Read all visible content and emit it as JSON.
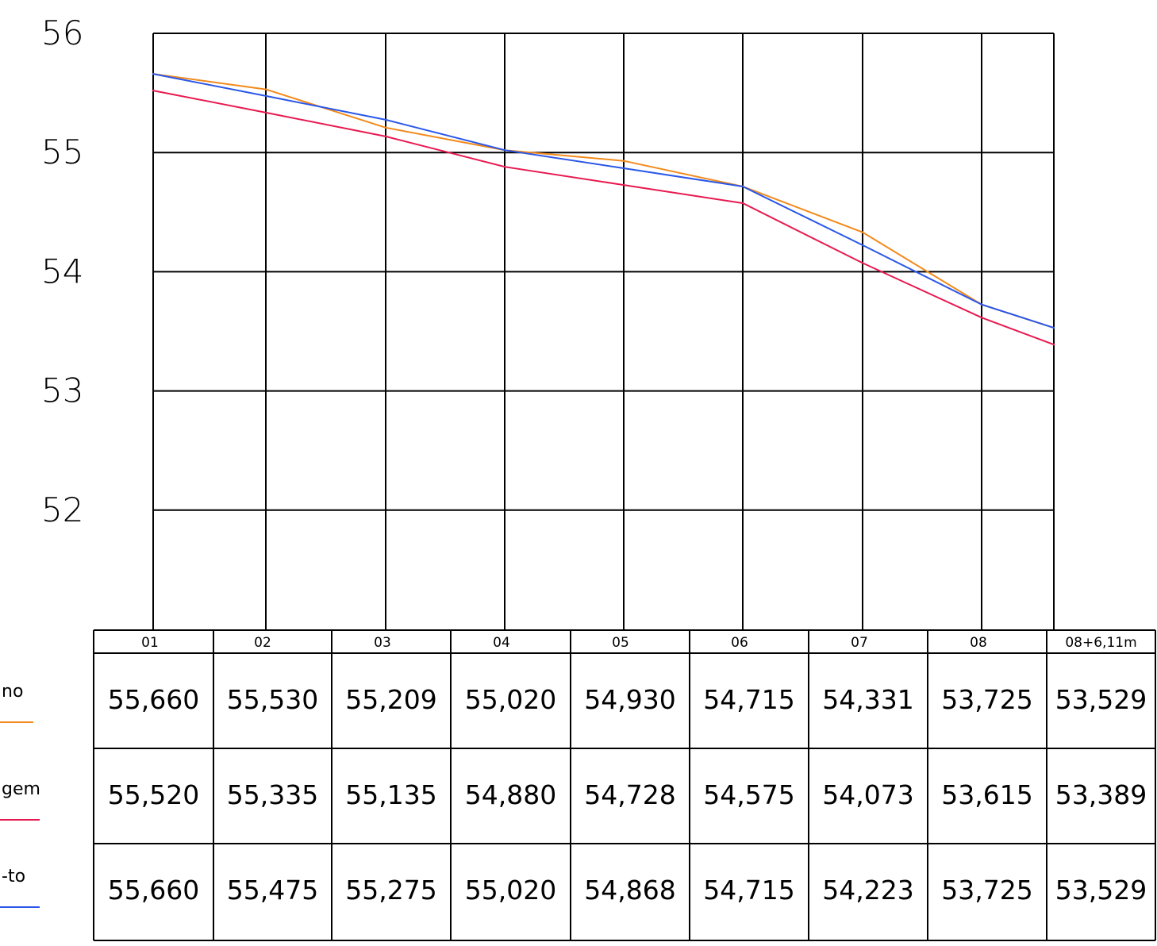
{
  "chart_data": {
    "type": "line",
    "x_categories": [
      "01",
      "02",
      "03",
      "04",
      "05",
      "06",
      "07",
      "08",
      "08+6,11m"
    ],
    "y_ticks": [
      "56",
      "55",
      "54",
      "53",
      "52"
    ],
    "ylim": [
      51,
      56
    ],
    "grid": true,
    "series": [
      {
        "legend_label": "no",
        "color": "#f28a1c",
        "values": [
          55.66,
          55.53,
          55.209,
          55.02,
          54.93,
          54.715,
          54.331,
          53.725,
          53.529
        ],
        "labels": [
          "55,660",
          "55,530",
          "55,209",
          "55,020",
          "54,930",
          "54,715",
          "54,331",
          "53,725",
          "53,529"
        ]
      },
      {
        "legend_label": "gem",
        "color": "#e8194f",
        "values": [
          55.52,
          55.335,
          55.135,
          54.88,
          54.728,
          54.575,
          54.073,
          53.615,
          53.389
        ],
        "labels": [
          "55,520",
          "55,335",
          "55,135",
          "54,880",
          "54,728",
          "54,575",
          "54,073",
          "53,615",
          "53,389"
        ]
      },
      {
        "legend_label": "-to",
        "color": "#2a57e8",
        "values": [
          55.66,
          55.475,
          55.275,
          55.02,
          54.868,
          54.715,
          54.223,
          53.725,
          53.529
        ],
        "labels": [
          "55,660",
          "55,475",
          "55,275",
          "55,020",
          "54,868",
          "54,715",
          "54,223",
          "53,725",
          "53,529"
        ]
      }
    ]
  }
}
